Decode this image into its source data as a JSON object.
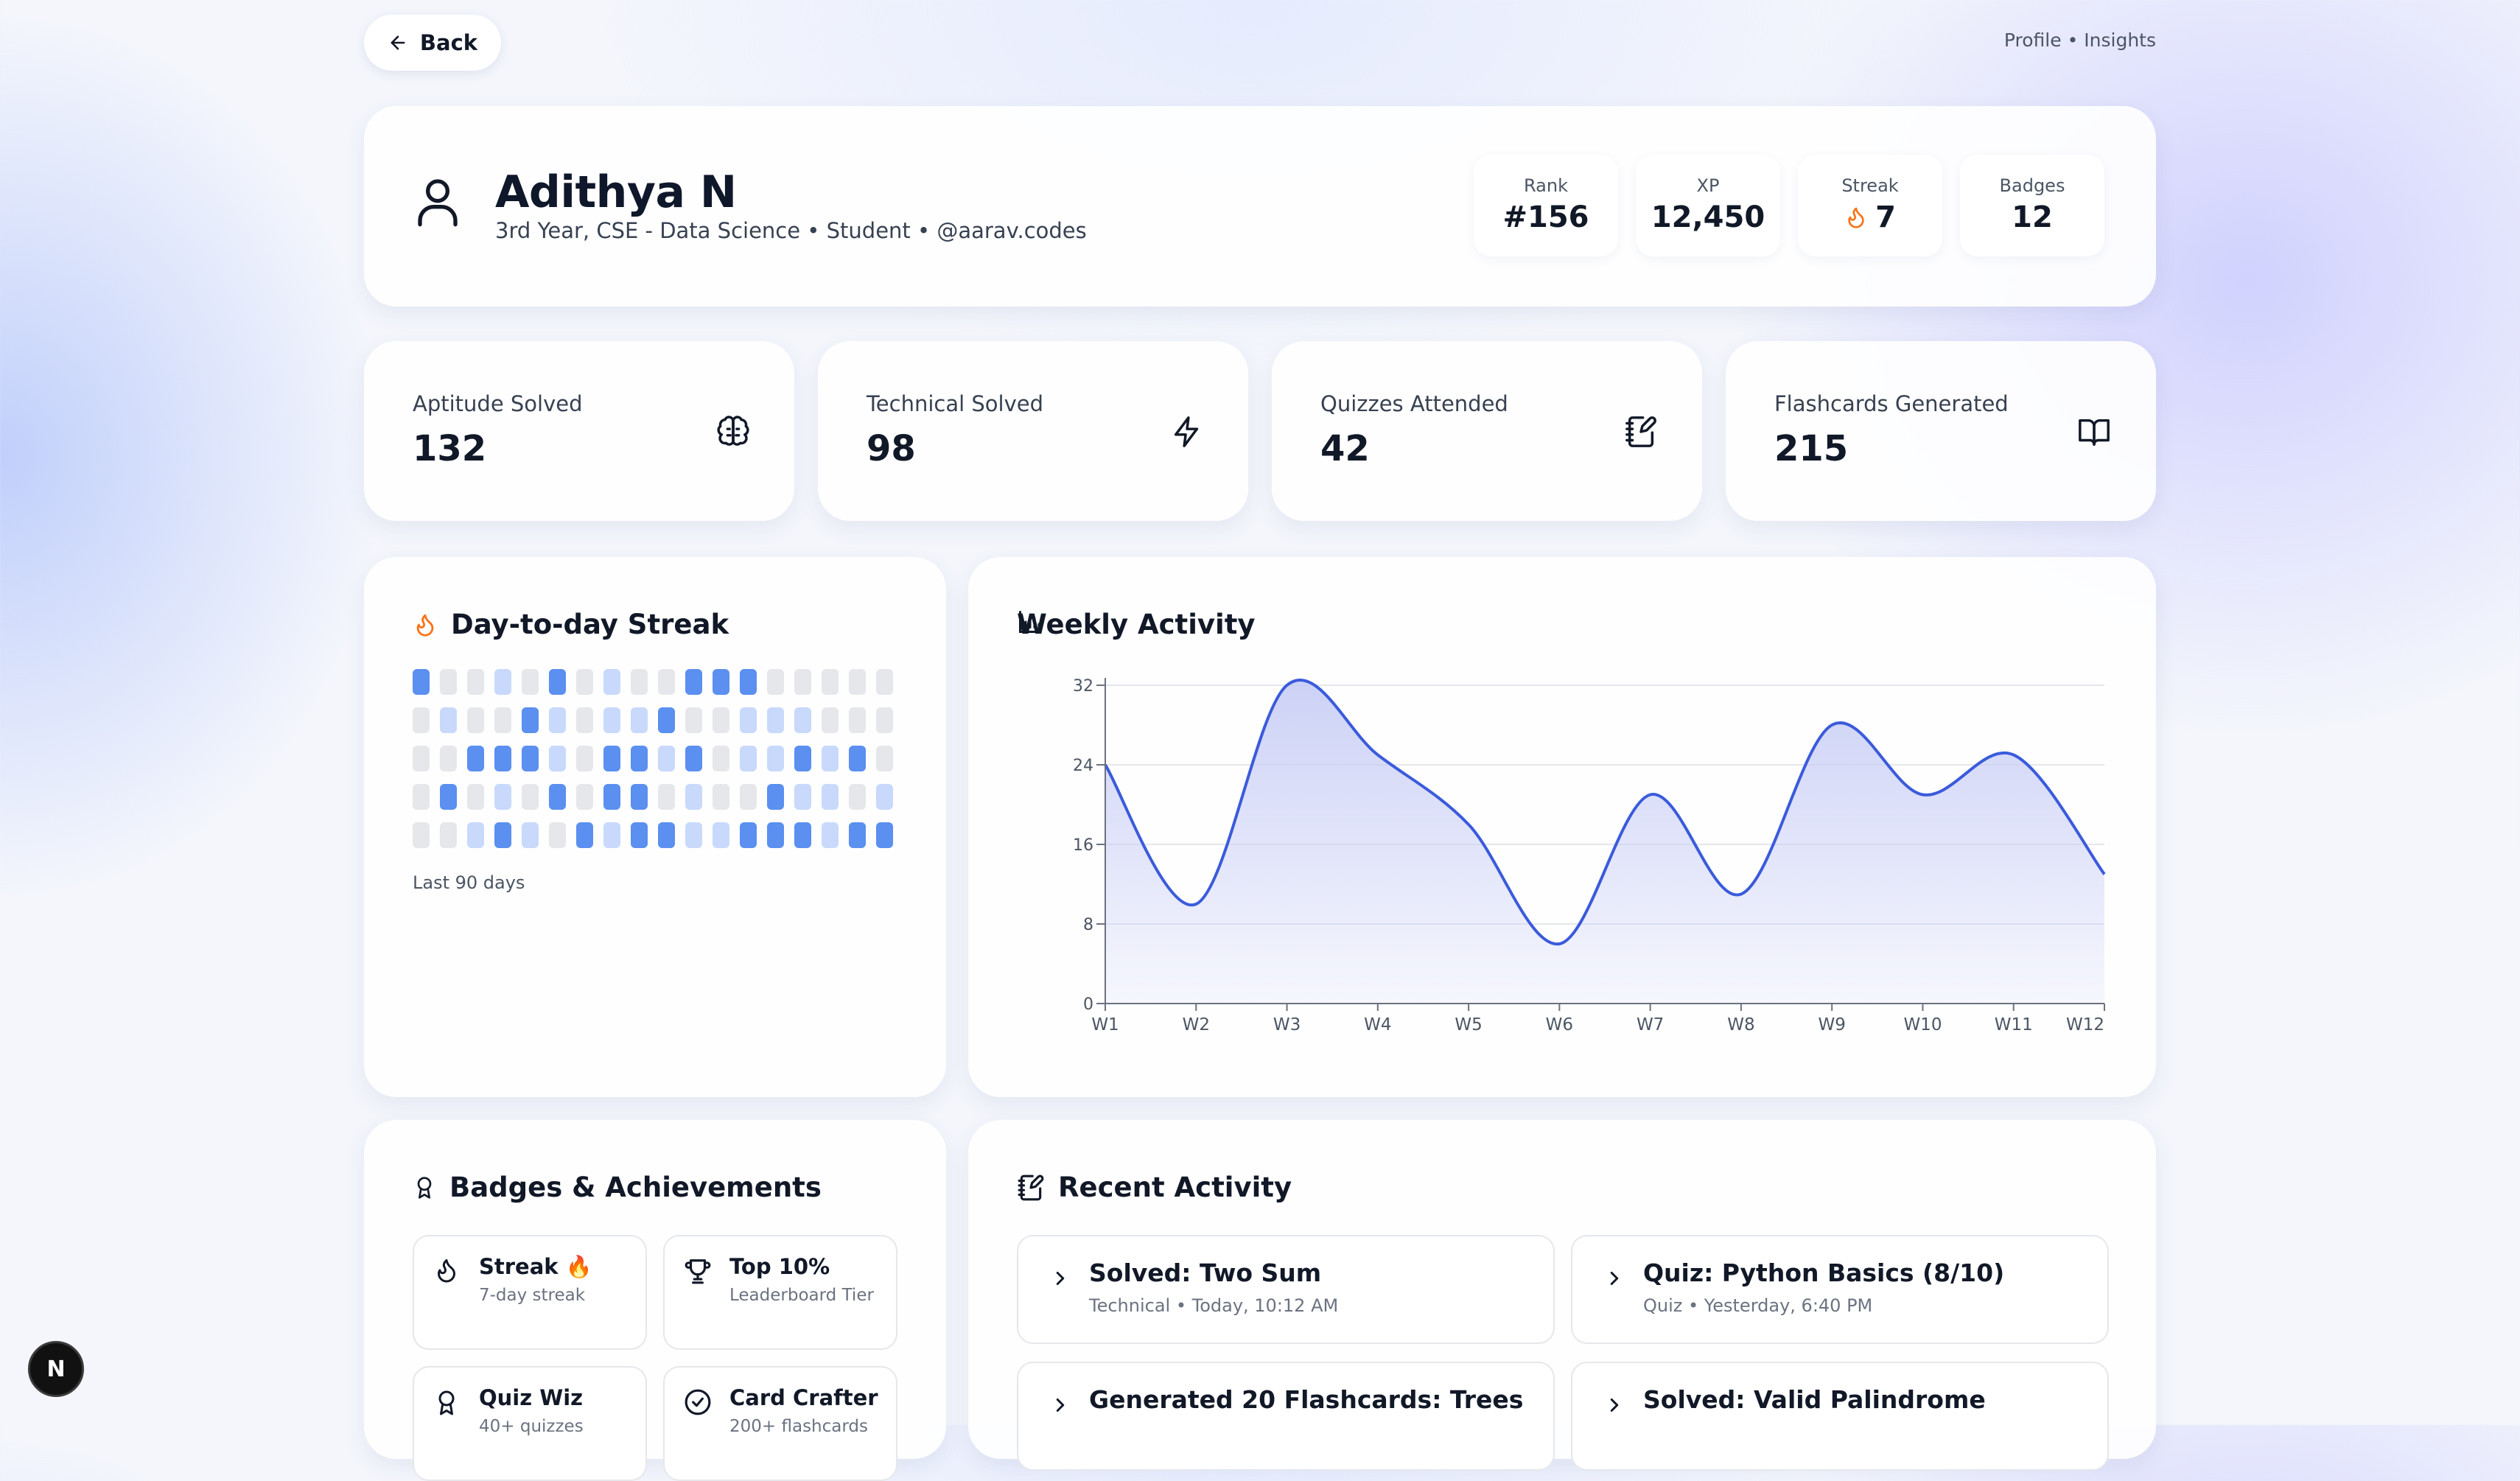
{
  "nav": {
    "back_label": "Back",
    "breadcrumb": "Profile • Insights"
  },
  "profile": {
    "name": "Adithya N",
    "subtitle": "3rd Year, CSE - Data Science • Student • @aarav.codes",
    "stats": [
      {
        "label": "Rank",
        "value": "#156"
      },
      {
        "label": "XP",
        "value": "12,450"
      },
      {
        "label": "Streak",
        "value": "7",
        "icon": "flame-icon"
      },
      {
        "label": "Badges",
        "value": "12"
      }
    ]
  },
  "metrics": [
    {
      "label": "Aptitude Solved",
      "value": "132",
      "icon": "brain-icon"
    },
    {
      "label": "Technical Solved",
      "value": "98",
      "icon": "zap-icon"
    },
    {
      "label": "Quizzes Attended",
      "value": "42",
      "icon": "notebook-pen-icon"
    },
    {
      "label": "Flashcards Generated",
      "value": "215",
      "icon": "book-open-icon"
    }
  ],
  "streak": {
    "title": "Day-to-day Streak",
    "caption": "Last 90 days",
    "grid": [
      [
        2,
        0,
        0,
        1,
        0,
        2,
        0,
        1,
        0,
        0,
        2,
        2,
        2,
        0,
        0,
        0,
        0,
        0
      ],
      [
        0,
        1,
        0,
        0,
        2,
        1,
        0,
        1,
        1,
        2,
        0,
        0,
        1,
        1,
        1,
        0,
        0,
        0
      ],
      [
        0,
        0,
        2,
        2,
        2,
        1,
        0,
        2,
        2,
        1,
        2,
        0,
        1,
        1,
        2,
        1,
        2,
        0
      ],
      [
        0,
        2,
        0,
        1,
        0,
        2,
        0,
        2,
        2,
        0,
        1,
        0,
        0,
        2,
        1,
        1,
        0,
        1
      ],
      [
        0,
        0,
        1,
        2,
        1,
        0,
        2,
        1,
        2,
        2,
        1,
        1,
        2,
        2,
        2,
        1,
        2,
        2
      ]
    ],
    "colors": {
      "none": "#e5e7eb",
      "low": "#c8d9fb",
      "high": "#5b8ff0",
      "flame": "#f97316"
    }
  },
  "weekly": {
    "title": "Weekly Activity"
  },
  "chart_data": {
    "type": "area",
    "title": "Weekly Activity",
    "categories": [
      "W1",
      "W2",
      "W3",
      "W4",
      "W5",
      "W6",
      "W7",
      "W8",
      "W9",
      "W10",
      "W11",
      "W12"
    ],
    "values": [
      24,
      10,
      32,
      25,
      18,
      6,
      21,
      11,
      28,
      21,
      25,
      13
    ],
    "ylim": [
      0,
      32
    ],
    "yticks": [
      0,
      8,
      16,
      24,
      32
    ],
    "grid": true,
    "line_color": "#3b5bdb",
    "fill_color": "#c7cdf5"
  },
  "badges": {
    "title": "Badges & Achievements",
    "items": [
      {
        "title": "Streak 🔥",
        "desc": "7-day streak",
        "icon": "flame-icon"
      },
      {
        "title": "Top 10%",
        "desc": "Leaderboard Tier",
        "icon": "trophy-icon"
      },
      {
        "title": "Quiz Wiz",
        "desc": "40+ quizzes",
        "icon": "award-icon"
      },
      {
        "title": "Card Crafter",
        "desc": "200+ flashcards",
        "icon": "check-circle-icon"
      }
    ]
  },
  "recent": {
    "title": "Recent Activity",
    "items": [
      {
        "title": "Solved: Two Sum",
        "meta": "Technical • Today, 10:12 AM"
      },
      {
        "title": "Quiz: Python Basics (8/10)",
        "meta": "Quiz • Yesterday, 6:40 PM"
      },
      {
        "title": "Generated 20 Flashcards: Trees",
        "meta": ""
      },
      {
        "title": "Solved: Valid Palindrome",
        "meta": ""
      }
    ]
  },
  "dev_badge": "N"
}
